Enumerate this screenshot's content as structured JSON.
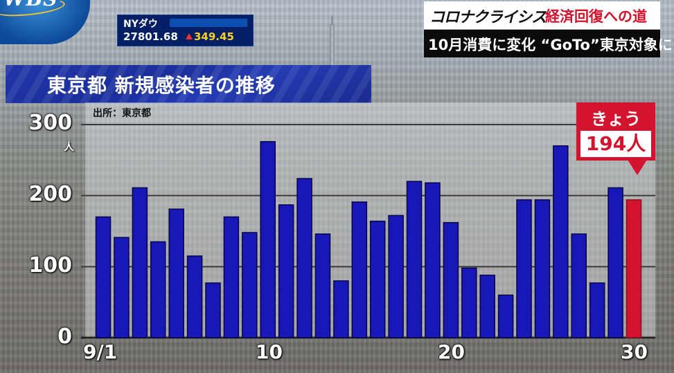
{
  "logo": {
    "text": "WBS"
  },
  "ticker": {
    "name": "NYダウ",
    "value": "27801.68",
    "change": "349.45",
    "change_color": "#ffd21a",
    "arrow_color": "#e33333"
  },
  "header": {
    "series_title": "コロナクライシス",
    "topic": "経済回復への道",
    "subtitle": "10月消費に変化 “GoTo”東京対象に"
  },
  "title": "東京都 新規感染者の推移",
  "source": "出所：東京都",
  "today": {
    "label": "きょう",
    "value": "194人",
    "color": "#d4142f"
  },
  "chart_data": {
    "type": "bar",
    "title": "東京都 新規感染者の推移",
    "ylabel": "人",
    "xlabel": "",
    "ylim": [
      0,
      300
    ],
    "yticks": [
      0,
      100,
      200,
      300
    ],
    "y_tick_labels": [
      "0",
      "100",
      "200",
      "300"
    ],
    "x_tick_labels": [
      {
        "day": 1,
        "label": "9/1"
      },
      {
        "day": 10,
        "label": "10"
      },
      {
        "day": 20,
        "label": "20"
      },
      {
        "day": 30,
        "label": "30"
      }
    ],
    "categories": [
      1,
      2,
      3,
      4,
      5,
      6,
      7,
      8,
      9,
      10,
      11,
      12,
      13,
      14,
      15,
      16,
      17,
      18,
      19,
      20,
      21,
      22,
      23,
      24,
      25,
      26,
      27,
      28,
      29,
      30
    ],
    "values": [
      170,
      141,
      211,
      135,
      181,
      115,
      77,
      170,
      148,
      276,
      187,
      224,
      146,
      80,
      191,
      164,
      172,
      220,
      218,
      162,
      98,
      88,
      60,
      194,
      194,
      270,
      146,
      77,
      211,
      194
    ],
    "bar_color": "#1818b8",
    "highlight_color": "#d4142f",
    "highlight_index": 29,
    "grid": true
  }
}
